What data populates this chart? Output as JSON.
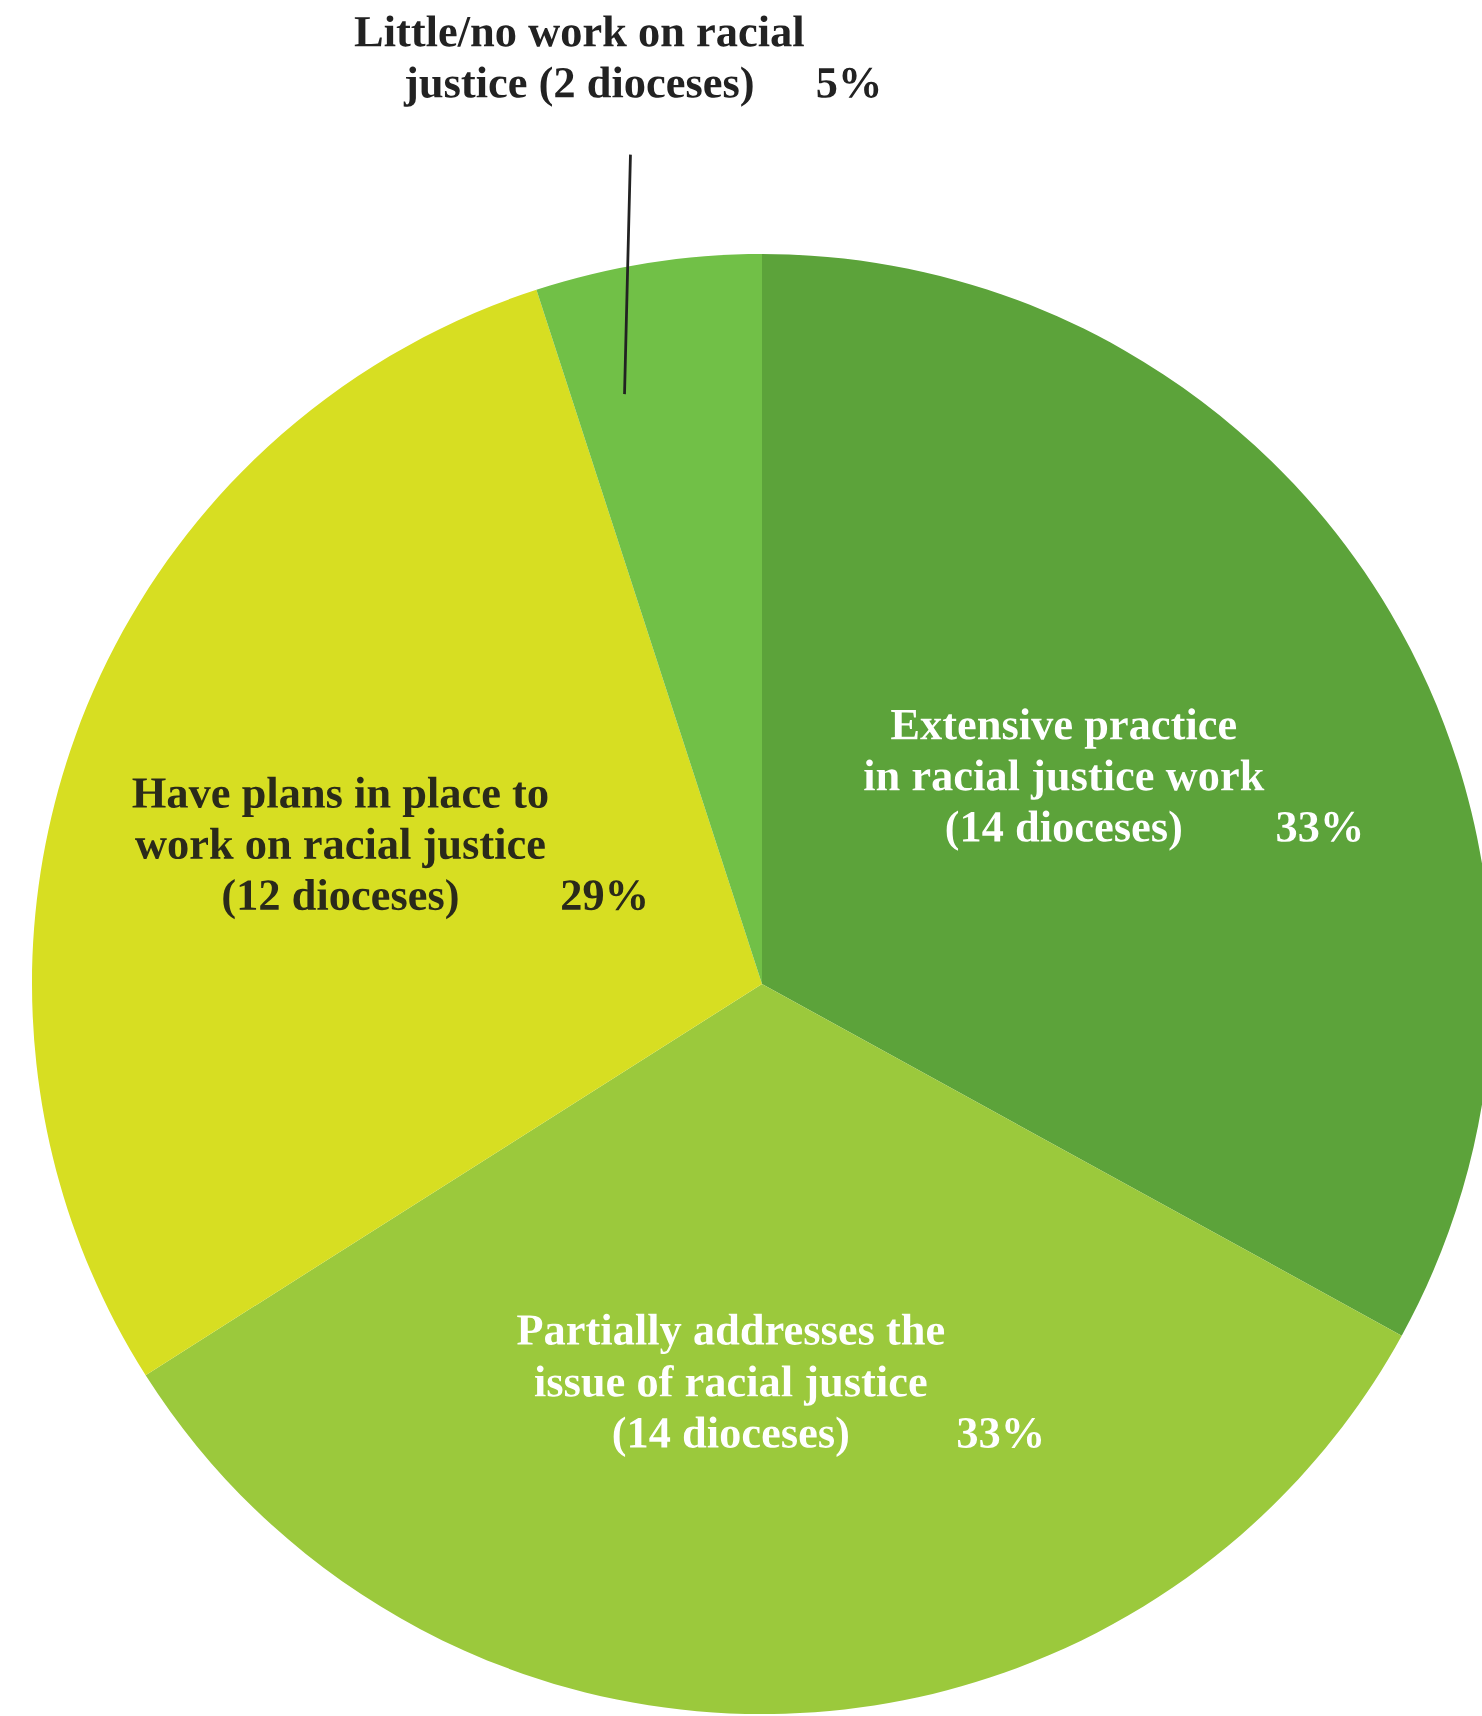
{
  "chart_data": {
    "type": "pie",
    "categories": [
      "Extensive practice\nin racial justice work\n(14 dioceses)",
      "Partially addresses the\nissue of racial justice\n(14 dioceses)",
      "Have plans in place to\nwork on racial justice\n(12 dioceses)",
      "Little/no work on racial\njustice (2 dioceses)"
    ],
    "values": [
      33,
      33,
      29,
      5
    ],
    "colors": [
      "#5ca33a",
      "#9bc93c",
      "#d7de22",
      "#71c047"
    ],
    "value_labels": [
      "33%",
      "33%",
      "29%",
      "5%"
    ]
  }
}
